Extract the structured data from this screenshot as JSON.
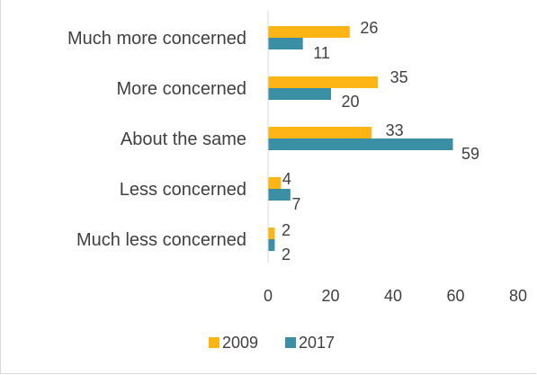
{
  "chart_data": {
    "type": "bar",
    "orientation": "horizontal",
    "categories": [
      "Much more concerned",
      "More concerned",
      "About the same",
      "Less concerned",
      "Much less concerned"
    ],
    "series": [
      {
        "name": "2009",
        "color": "#FDB515",
        "values": [
          26,
          35,
          33,
          4,
          2
        ]
      },
      {
        "name": "2017",
        "color": "#3A8FA5",
        "values": [
          11,
          20,
          59,
          7,
          2
        ]
      }
    ],
    "xlim": [
      0,
      80
    ],
    "xticks": [
      "0",
      "20",
      "40",
      "60",
      "80"
    ],
    "legend": "bottom",
    "grid": false
  }
}
